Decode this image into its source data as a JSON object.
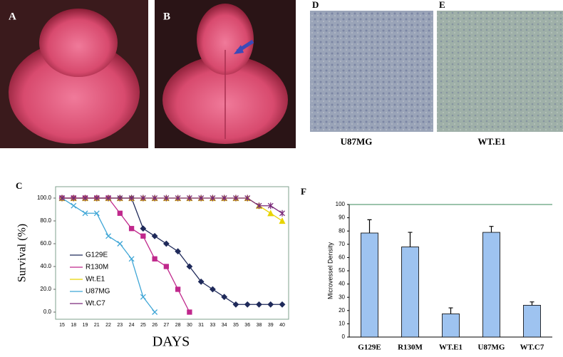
{
  "figure": {
    "labels": [
      "A",
      "B",
      "C",
      "D",
      "E",
      "F"
    ],
    "captions": [
      "U87MG",
      "WT.E1"
    ]
  },
  "chart_data": [
    {
      "type": "line",
      "x_label": "DAYS",
      "y_label": "Survival (%)",
      "categories": [
        "15",
        "18",
        "19",
        "21",
        "22",
        "23",
        "24",
        "25",
        "26",
        "27",
        "28",
        "30",
        "31",
        "33",
        "34",
        "35",
        "36",
        "38",
        "39",
        "40"
      ],
      "ylim": [
        0,
        110
      ],
      "yticks": [
        {
          "value": 0,
          "label": "0.0"
        },
        {
          "value": 20,
          "label": "20.0"
        },
        {
          "value": 40,
          "label": "40.0"
        },
        {
          "value": 60,
          "label": "60.0"
        },
        {
          "value": 80,
          "label": "80.0"
        },
        {
          "value": 100,
          "label": "100.0"
        }
      ],
      "series": [
        {
          "name": "G129E",
          "color": "#1f2a5a",
          "marker": "diamond",
          "values": [
            100,
            100,
            100,
            100,
            100,
            100,
            100,
            73.3,
            66.7,
            60,
            53.3,
            40,
            26.7,
            20,
            13.3,
            6.7,
            6.7,
            6.7,
            6.7,
            6.7
          ]
        },
        {
          "name": "R130M",
          "color": "#c0288c",
          "marker": "square",
          "values": [
            100,
            100,
            100,
            100,
            100,
            86.7,
            73.3,
            66.7,
            46.7,
            40,
            20,
            0,
            null,
            null,
            null,
            null,
            null,
            null,
            null,
            null
          ]
        },
        {
          "name": "Wt.E1",
          "color": "#e8d400",
          "marker": "triangle",
          "values": [
            100,
            100,
            100,
            100,
            100,
            100,
            100,
            100,
            100,
            100,
            100,
            100,
            100,
            100,
            100,
            100,
            100,
            93.3,
            86.7,
            80
          ]
        },
        {
          "name": "U87MG",
          "color": "#3fa6d6",
          "marker": "x",
          "values": [
            100,
            93.3,
            86.7,
            86.7,
            66.7,
            60,
            46.7,
            13.3,
            0,
            null,
            null,
            null,
            null,
            null,
            null,
            null,
            null,
            null,
            null,
            null
          ]
        },
        {
          "name": "Wt.C7",
          "color": "#7a2a7a",
          "marker": "star",
          "values": [
            100,
            100,
            100,
            100,
            100,
            100,
            100,
            100,
            100,
            100,
            100,
            100,
            100,
            100,
            100,
            100,
            100,
            93.3,
            93.3,
            86.7
          ]
        }
      ]
    },
    {
      "type": "bar",
      "y_label": "Microvessel Density",
      "categories": [
        "G129E",
        "R130M",
        "WT.E1",
        "U87MG",
        "WT.C7"
      ],
      "values": [
        78.5,
        68,
        17.5,
        79,
        24
      ],
      "errors": [
        10,
        11,
        4.5,
        4.5,
        2.5
      ],
      "color": "#9ec3f0",
      "ylim": [
        0,
        100
      ],
      "yticks": [
        0,
        10,
        20,
        30,
        40,
        50,
        60,
        70,
        80,
        90,
        100
      ]
    }
  ]
}
